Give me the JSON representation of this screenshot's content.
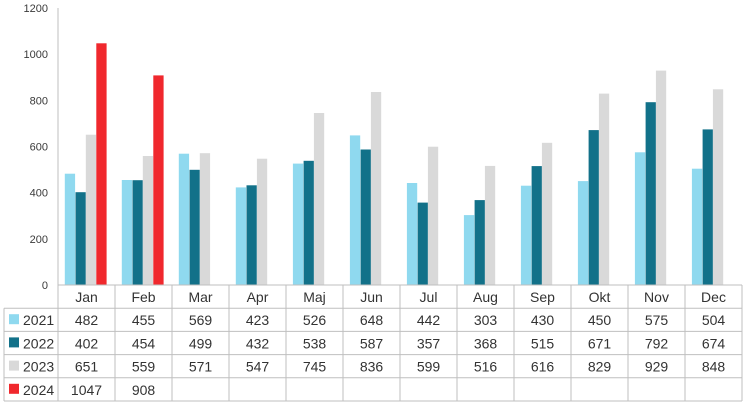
{
  "chart_data": {
    "type": "bar",
    "categories": [
      "Jan",
      "Feb",
      "Mar",
      "Apr",
      "Maj",
      "Jun",
      "Jul",
      "Aug",
      "Sep",
      "Okt",
      "Nov",
      "Dec"
    ],
    "series": [
      {
        "name": "2021",
        "color": "#8fd9ef",
        "values": [
          482,
          455,
          569,
          423,
          526,
          648,
          442,
          303,
          430,
          450,
          575,
          504
        ]
      },
      {
        "name": "2022",
        "color": "#127189",
        "values": [
          402,
          454,
          499,
          432,
          538,
          587,
          357,
          368,
          515,
          671,
          792,
          674
        ]
      },
      {
        "name": "2023",
        "color": "#d9d9d9",
        "values": [
          651,
          559,
          571,
          547,
          745,
          836,
          599,
          516,
          616,
          829,
          929,
          848
        ]
      },
      {
        "name": "2024",
        "color": "#f0282d",
        "values": [
          1047,
          908,
          null,
          null,
          null,
          null,
          null,
          null,
          null,
          null,
          null,
          null
        ]
      }
    ],
    "yticks": [
      "0",
      "200",
      "400",
      "600",
      "800",
      "1000",
      "1200"
    ],
    "ylim": [
      0,
      1200
    ],
    "grid": false,
    "legend": "data-table-left"
  }
}
